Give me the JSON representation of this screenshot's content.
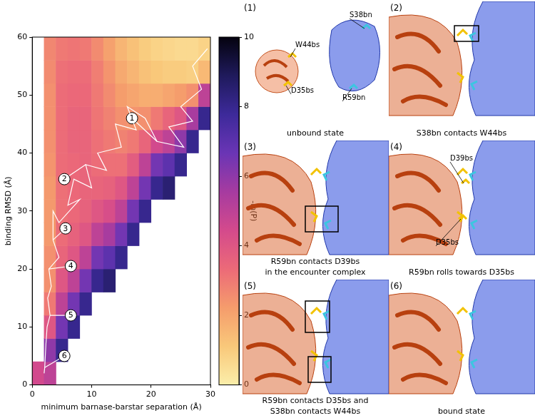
{
  "chart_data": {
    "type": "heatmap",
    "x_label": "minimum barnase-barstar separation (Å)",
    "y_label": "binding RMSD (Å)",
    "xlim": [
      0,
      30
    ],
    "xticks": [
      0,
      10,
      20,
      30
    ],
    "ylim": [
      0,
      60
    ],
    "yticks": [
      0,
      10,
      20,
      30,
      40,
      50,
      60
    ],
    "grid": false,
    "x_bins": [
      0,
      2,
      4,
      6,
      8,
      10,
      12,
      14,
      16,
      18,
      20,
      22,
      24,
      26,
      28,
      30
    ],
    "y_bins": [
      0,
      4,
      8,
      12,
      16,
      20,
      24,
      28,
      32,
      36,
      40,
      44,
      48,
      52,
      56,
      60
    ],
    "z": [
      [
        4.5,
        5,
        null,
        null,
        null,
        null,
        null,
        null,
        null,
        null,
        null,
        null,
        null,
        null,
        null
      ],
      [
        null,
        6,
        8,
        null,
        null,
        null,
        null,
        null,
        null,
        null,
        null,
        null,
        null,
        null,
        null
      ],
      [
        null,
        4,
        6.5,
        8,
        null,
        null,
        null,
        null,
        null,
        null,
        null,
        null,
        null,
        null,
        null
      ],
      [
        null,
        3,
        5,
        6.5,
        8,
        null,
        null,
        null,
        null,
        null,
        null,
        null,
        null,
        null,
        null
      ],
      [
        null,
        2.5,
        4,
        5,
        6.5,
        8,
        8.5,
        null,
        null,
        null,
        null,
        null,
        null,
        null,
        null
      ],
      [
        null,
        2.5,
        3.5,
        4,
        5,
        6.5,
        7,
        8,
        null,
        null,
        null,
        null,
        null,
        null,
        null
      ],
      [
        null,
        2.3,
        3.3,
        3.6,
        4,
        5,
        5.5,
        6.5,
        8,
        null,
        null,
        null,
        null,
        null,
        null
      ],
      [
        null,
        2.3,
        3.2,
        3.4,
        3.6,
        4,
        4.3,
        5,
        6.5,
        8,
        null,
        null,
        null,
        null,
        null
      ],
      [
        null,
        2.3,
        3.2,
        3.4,
        3.5,
        3.5,
        3.6,
        4,
        5,
        6.5,
        8,
        8.5,
        null,
        null,
        null
      ],
      [
        null,
        2.4,
        3.3,
        3.4,
        3.5,
        3.3,
        3.2,
        3.2,
        3.8,
        5,
        6.5,
        7,
        8,
        null,
        null
      ],
      [
        null,
        2.5,
        3.3,
        3.5,
        3.5,
        3.2,
        3,
        2.8,
        3,
        3.5,
        4.5,
        5,
        6,
        8,
        null
      ],
      [
        null,
        2.5,
        3.3,
        3.5,
        3.5,
        3.1,
        2.8,
        2.5,
        2.4,
        2.5,
        3,
        3.5,
        4,
        5.5,
        8
      ],
      [
        null,
        2.5,
        3.3,
        3.4,
        3.4,
        3,
        2.6,
        2.2,
        2,
        1.8,
        1.8,
        2,
        2.2,
        2.5,
        5
      ],
      [
        null,
        2.6,
        3.2,
        3.3,
        3.3,
        2.9,
        2.4,
        1.9,
        1.6,
        1.3,
        1.1,
        1,
        1,
        0.9,
        1.5
      ],
      [
        null,
        2.7,
        3,
        3.1,
        3,
        2.6,
        2.1,
        1.6,
        1.3,
        1,
        0.8,
        0.7,
        0.6,
        0.6,
        0.8
      ]
    ],
    "colorbar": {
      "label": "-ln(P)",
      "range": [
        0,
        10
      ],
      "ticks": [
        0,
        2,
        4,
        6,
        8,
        10
      ],
      "colors": [
        "#fbeeaa",
        "#f9c87a",
        "#f59c6c",
        "#ec6a78",
        "#d44a8c",
        "#a63ba0",
        "#6a35b5",
        "#3d2a9a",
        "#1f1a5c",
        "#05030f"
      ]
    },
    "trajectory": {
      "color": "#ffffff",
      "x": [
        29.5,
        27,
        28.5,
        25,
        27,
        23,
        25.5,
        21,
        19,
        16,
        17.5,
        14,
        15,
        11,
        12.5,
        9,
        10,
        7,
        6,
        8,
        4.5,
        3.5,
        3.5,
        4.5,
        2.8,
        3.2,
        2.6,
        3,
        2.5,
        2.3,
        2.2,
        2.1,
        2
      ],
      "y": [
        58,
        55,
        51,
        48,
        45.5,
        44.5,
        41,
        42,
        46,
        48,
        44,
        45,
        41,
        40,
        37,
        38,
        34,
        35.5,
        31,
        32,
        28,
        30,
        25,
        22,
        20,
        17,
        15,
        12,
        10,
        7,
        5,
        3,
        2
      ]
    },
    "annotations": [
      {
        "label": "1",
        "x": 16.8,
        "y": 46,
        "target_x": 21,
        "target_y": 42
      },
      {
        "label": "2",
        "x": 5.4,
        "y": 35.5,
        "target_x": 9,
        "target_y": 38
      },
      {
        "label": "3",
        "x": 5.6,
        "y": 27,
        "target_x": 3.5,
        "target_y": 25
      },
      {
        "label": "4",
        "x": 6.5,
        "y": 20.5,
        "target_x": 2.8,
        "target_y": 20
      },
      {
        "label": "5",
        "x": 6.5,
        "y": 12,
        "target_x": 3,
        "target_y": 12
      },
      {
        "label": "6",
        "x": 5.4,
        "y": 5,
        "target_x": 2.1,
        "target_y": 3
      }
    ]
  },
  "panels": [
    {
      "label": "(1)",
      "caption": [
        "unbound state"
      ],
      "residues": [
        "W44bs",
        "D35bs",
        "S38bn",
        "R59bn"
      ]
    },
    {
      "label": "(2)",
      "caption": [
        "S38bn contacts W44bs"
      ]
    },
    {
      "label": "(3)",
      "caption": [
        "R59bn contacts D39bs",
        "in the encounter complex"
      ]
    },
    {
      "label": "(4)",
      "caption": [
        "R59bn rolls towards D35bs"
      ],
      "residues": [
        "D39bs",
        "D35bs"
      ]
    },
    {
      "label": "(5)",
      "caption": [
        "R59bn contacts D35bs and",
        "S38bn contacts W44bs"
      ]
    },
    {
      "label": "(6)",
      "caption": [
        "bound state"
      ]
    }
  ]
}
